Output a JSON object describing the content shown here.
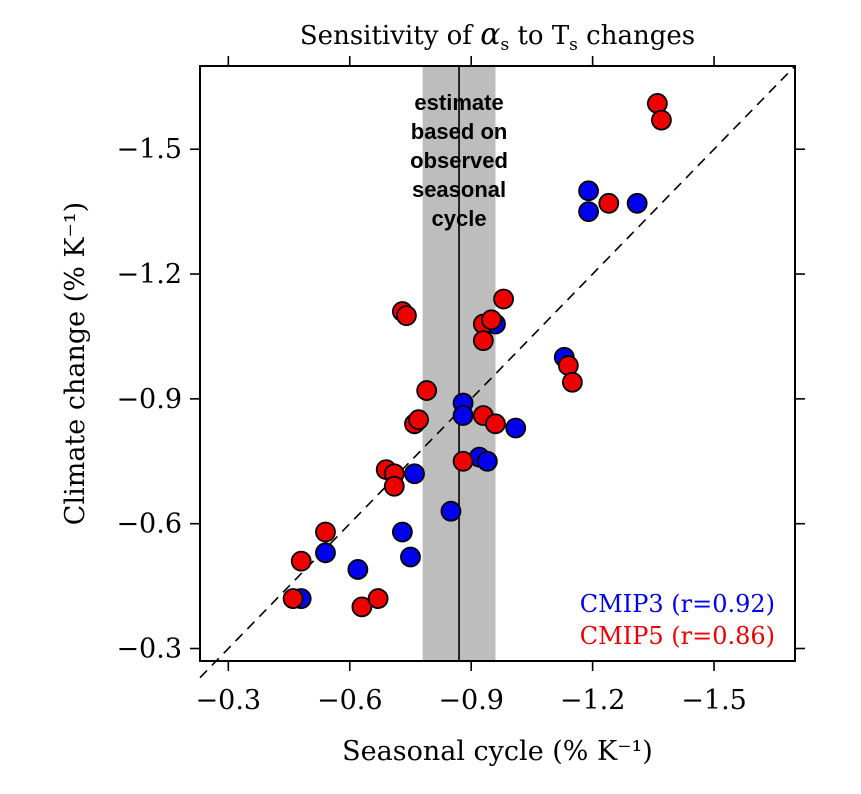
{
  "chart_data": {
    "type": "scatter",
    "title": "Sensitivity of αs to Ts changes",
    "title_parts": {
      "prefix": "Sensitivity of ",
      "alpha": "α",
      "alpha_sub": "s",
      "middle": " to T",
      "t_sub": "s",
      "suffix": " changes"
    },
    "xlabel": "Seasonal cycle (% K⁻¹)",
    "ylabel": "Climate change (% K⁻¹)",
    "axis_reversed": true,
    "xlim": [
      -0.23,
      -1.7
    ],
    "ylim": [
      -0.27,
      -1.7
    ],
    "x_ticks": [
      -0.3,
      -0.6,
      -0.9,
      -1.2,
      -1.5
    ],
    "x_tick_labels": [
      "−0.3",
      "−0.6",
      "−0.9",
      "−1.2",
      "−1.5"
    ],
    "y_ticks": [
      -0.3,
      -0.6,
      -0.9,
      -1.2,
      -1.5
    ],
    "y_tick_labels": [
      "−0.3",
      "−0.6",
      "−0.9",
      "−1.2",
      "−1.5"
    ],
    "reference_line": {
      "style": "dashed",
      "description": "1:1 line"
    },
    "observed_estimate": {
      "value": -0.87,
      "range": [
        -0.78,
        -0.96
      ],
      "label_lines": [
        "estimate",
        "based on",
        "observed",
        "seasonal",
        "cycle"
      ]
    },
    "legend_position": "bottom-right",
    "series": [
      {
        "name": "CMIP3",
        "legend_label": "CMIP3 (r=0.92)",
        "color": "#0000ee",
        "points": [
          [
            -0.48,
            -0.42
          ],
          [
            -0.54,
            -0.53
          ],
          [
            -0.62,
            -0.49
          ],
          [
            -0.73,
            -0.58
          ],
          [
            -0.75,
            -0.52
          ],
          [
            -0.76,
            -0.72
          ],
          [
            -0.85,
            -0.63
          ],
          [
            -0.88,
            -0.89
          ],
          [
            -0.88,
            -0.86
          ],
          [
            -0.92,
            -0.76
          ],
          [
            -0.94,
            -0.75
          ],
          [
            -0.96,
            -1.08
          ],
          [
            -1.01,
            -0.83
          ],
          [
            -1.13,
            -1.0
          ],
          [
            -1.19,
            -1.4
          ],
          [
            -1.19,
            -1.35
          ],
          [
            -1.31,
            -1.37
          ]
        ]
      },
      {
        "name": "CMIP5",
        "legend_label": "CMIP5 (r=0.86)",
        "color": "#ee0000",
        "points": [
          [
            -0.46,
            -0.42
          ],
          [
            -0.48,
            -0.51
          ],
          [
            -0.54,
            -0.58
          ],
          [
            -0.63,
            -0.4
          ],
          [
            -0.67,
            -0.42
          ],
          [
            -0.69,
            -0.73
          ],
          [
            -0.71,
            -0.72
          ],
          [
            -0.71,
            -0.69
          ],
          [
            -0.73,
            -1.11
          ],
          [
            -0.74,
            -1.1
          ],
          [
            -0.76,
            -0.84
          ],
          [
            -0.77,
            -0.85
          ],
          [
            -0.79,
            -0.92
          ],
          [
            -0.88,
            -0.75
          ],
          [
            -0.93,
            -0.86
          ],
          [
            -0.96,
            -0.84
          ],
          [
            -0.93,
            -1.08
          ],
          [
            -0.93,
            -1.04
          ],
          [
            -0.95,
            -1.09
          ],
          [
            -0.98,
            -1.14
          ],
          [
            -1.14,
            -0.98
          ],
          [
            -1.15,
            -0.94
          ],
          [
            -1.24,
            -1.37
          ],
          [
            -1.36,
            -1.61
          ],
          [
            -1.37,
            -1.57
          ]
        ]
      }
    ]
  }
}
